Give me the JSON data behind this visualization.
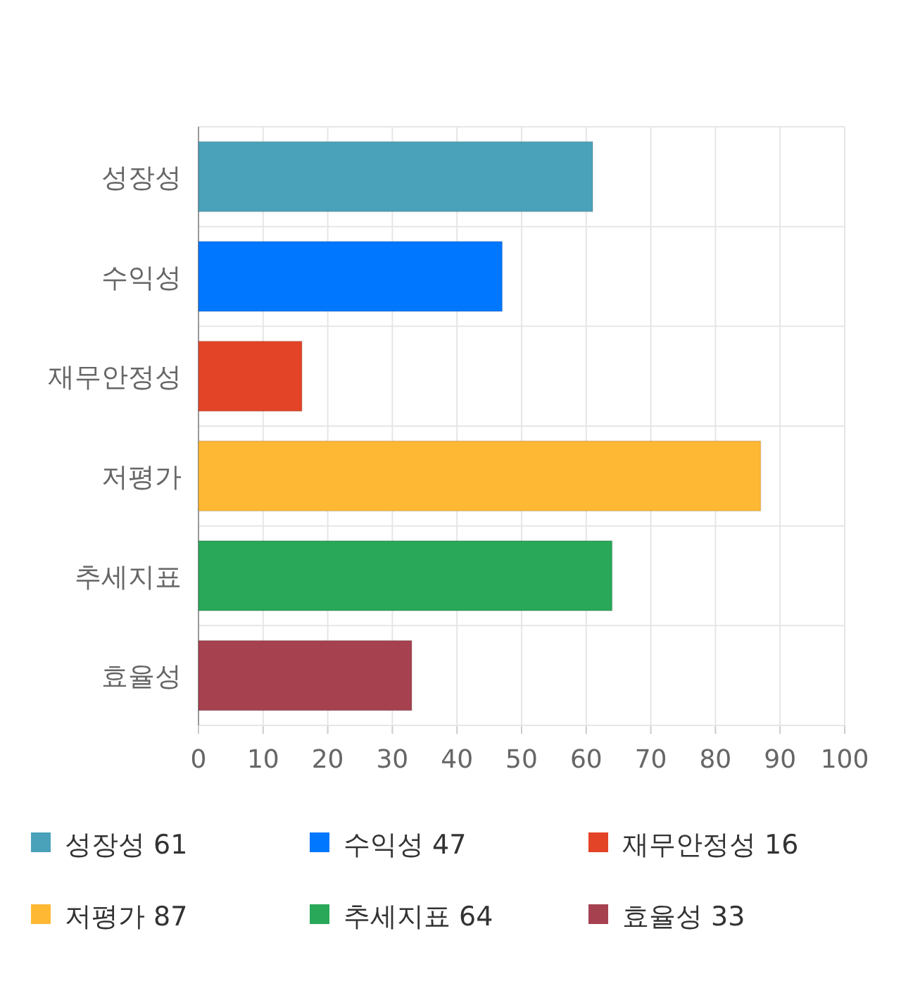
{
  "chart_data": {
    "type": "bar",
    "orientation": "horizontal",
    "categories": [
      "성장성",
      "수익성",
      "재무안정성",
      "저평가",
      "추세지표",
      "효율성"
    ],
    "series": [
      {
        "name": "성장성 61",
        "color": "#4aa1ba",
        "values": [
          61,
          null,
          null,
          null,
          null,
          null
        ]
      },
      {
        "name": "수익성 47",
        "color": "#0077ff",
        "values": [
          null,
          47,
          null,
          null,
          null,
          null
        ]
      },
      {
        "name": "재무안정성 16",
        "color": "#e34326",
        "values": [
          null,
          null,
          16,
          null,
          null,
          null
        ]
      },
      {
        "name": "저평가 87",
        "color": "#ffb833",
        "values": [
          null,
          null,
          null,
          87,
          null,
          null
        ]
      },
      {
        "name": "추세지표 64",
        "color": "#28a858",
        "values": [
          null,
          null,
          null,
          null,
          64,
          null
        ]
      },
      {
        "name": "효율성 33",
        "color": "#a64150",
        "values": [
          null,
          null,
          null,
          null,
          null,
          33
        ]
      }
    ],
    "xlim": [
      0,
      100
    ],
    "xticks": [
      0,
      10,
      20,
      30,
      40,
      50,
      60,
      70,
      80,
      90,
      100
    ],
    "grid": true,
    "legend": "bottom"
  }
}
